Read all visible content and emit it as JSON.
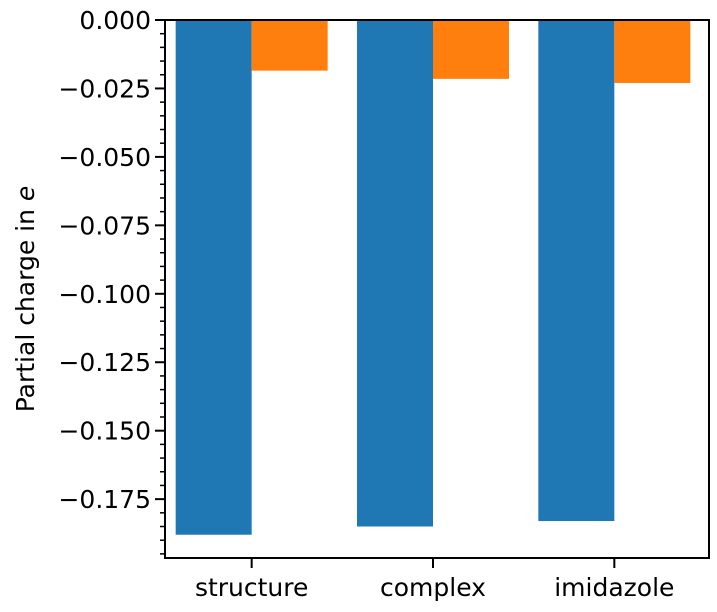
{
  "chart_data": {
    "type": "bar",
    "categories": [
      "structure",
      "complex",
      "imidazole"
    ],
    "series": [
      {
        "values": [
          -0.188,
          -0.185,
          -0.183
        ],
        "color": "#1f77b4"
      },
      {
        "values": [
          -0.0185,
          -0.0215,
          -0.023
        ],
        "color": "#ff7f0e"
      }
    ],
    "ylabel": "Partial charge in e",
    "ylabel_parts": {
      "text": "Partial charge in ",
      "italic": "e"
    },
    "ylim": [
      -0.1965,
      0.0
    ],
    "yticks": [
      0.0,
      -0.025,
      -0.05,
      -0.075,
      -0.1,
      -0.125,
      -0.15,
      -0.175
    ],
    "ytick_labels": [
      "0.000",
      "−0.025",
      "−0.050",
      "−0.075",
      "−0.100",
      "−0.125",
      "−0.150",
      "−0.175"
    ],
    "minor_tick_step": 0.005,
    "grid": false,
    "legend": "none"
  }
}
